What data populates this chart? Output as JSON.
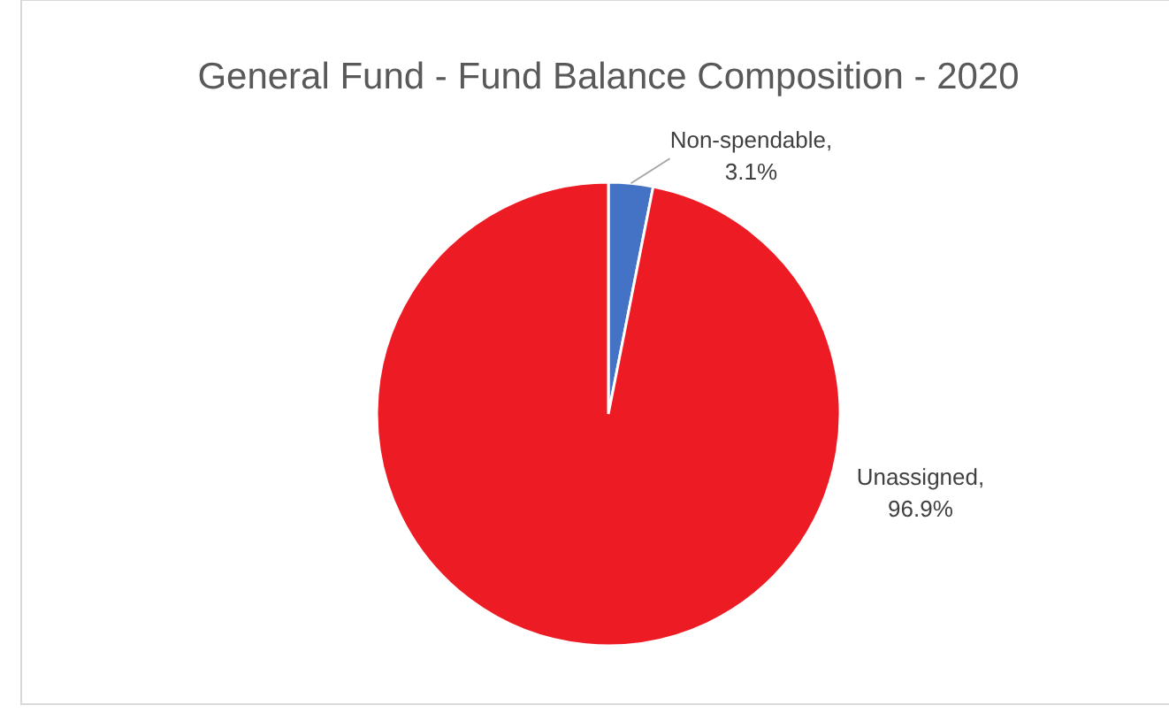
{
  "chart_data": {
    "type": "pie",
    "title": "General Fund - Fund Balance Composition - 2020",
    "categories": [
      "Non-spendable",
      "Unassigned"
    ],
    "values": [
      3.1,
      96.9
    ],
    "value_labels": [
      ", 3.1%",
      ", 96.9%"
    ],
    "colors": [
      "#4472c4",
      "#ed1c24"
    ],
    "data_labels": true,
    "legend": false
  }
}
